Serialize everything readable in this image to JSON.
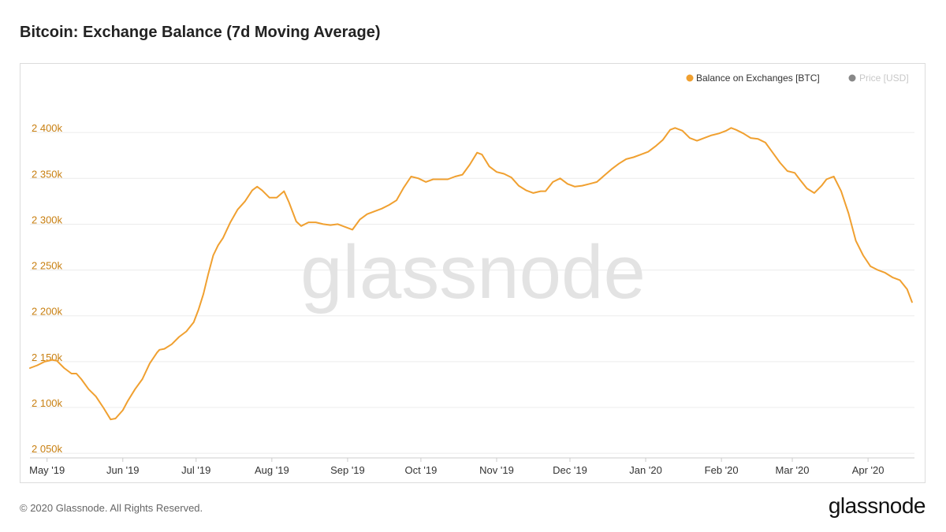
{
  "title": "Bitcoin: Exchange Balance (7d Moving Average)",
  "watermark": "glassnode",
  "footer": {
    "copyright": "© 2020 Glassnode. All Rights Reserved.",
    "brand": "glassnode"
  },
  "colors": {
    "series": "#f0a030",
    "axis_label": "#c87f10",
    "grid": "#ececec",
    "watermark": "#e3e3e3",
    "legend_inactive": "#888888"
  },
  "chart_data": {
    "type": "line",
    "title": "Bitcoin: Exchange Balance (7d Moving Average)",
    "xlabel": "",
    "ylabel": "",
    "grid": true,
    "legend_position": "top-right",
    "y_ticks": [
      2050000,
      2100000,
      2150000,
      2200000,
      2250000,
      2300000,
      2350000,
      2400000
    ],
    "y_tick_labels": [
      "2 050k",
      "2 100k",
      "2 150k",
      "2 200k",
      "2 250k",
      "2 300k",
      "2 350k",
      "2 400k"
    ],
    "ylim": [
      2045000,
      2450000
    ],
    "x_ticks": [
      "2019-05-01",
      "2019-06-01",
      "2019-07-01",
      "2019-08-01",
      "2019-09-01",
      "2019-10-01",
      "2019-11-01",
      "2019-12-01",
      "2020-01-01",
      "2020-02-01",
      "2020-03-01",
      "2020-04-01"
    ],
    "x_tick_labels": [
      "May '19",
      "Jun '19",
      "Jul '19",
      "Aug '19",
      "Sep '19",
      "Oct '19",
      "Nov '19",
      "Dec '19",
      "Jan '20",
      "Feb '20",
      "Mar '20",
      "Apr '20"
    ],
    "xlim": [
      "2019-04-24",
      "2020-04-20"
    ],
    "series": [
      {
        "name": "Balance on Exchanges [BTC]",
        "active": true,
        "points": [
          [
            "2019-04-24",
            2143000
          ],
          [
            "2019-04-27",
            2146000
          ],
          [
            "2019-04-30",
            2150000
          ],
          [
            "2019-05-03",
            2152000
          ],
          [
            "2019-05-05",
            2151000
          ],
          [
            "2019-05-08",
            2143000
          ],
          [
            "2019-05-11",
            2137000
          ],
          [
            "2019-05-13",
            2137000
          ],
          [
            "2019-05-15",
            2131000
          ],
          [
            "2019-05-18",
            2120000
          ],
          [
            "2019-05-21",
            2112000
          ],
          [
            "2019-05-24",
            2100000
          ],
          [
            "2019-05-27",
            2087000
          ],
          [
            "2019-05-29",
            2088000
          ],
          [
            "2019-06-01",
            2097000
          ],
          [
            "2019-06-03",
            2107000
          ],
          [
            "2019-06-06",
            2120000
          ],
          [
            "2019-06-09",
            2131000
          ],
          [
            "2019-06-12",
            2148000
          ],
          [
            "2019-06-15",
            2160000
          ],
          [
            "2019-06-16",
            2163000
          ],
          [
            "2019-06-18",
            2164000
          ],
          [
            "2019-06-21",
            2169000
          ],
          [
            "2019-06-24",
            2177000
          ],
          [
            "2019-06-27",
            2183000
          ],
          [
            "2019-06-30",
            2193000
          ],
          [
            "2019-07-02",
            2207000
          ],
          [
            "2019-07-04",
            2224000
          ],
          [
            "2019-07-06",
            2246000
          ],
          [
            "2019-07-08",
            2266000
          ],
          [
            "2019-07-10",
            2277000
          ],
          [
            "2019-07-12",
            2285000
          ],
          [
            "2019-07-15",
            2302000
          ],
          [
            "2019-07-18",
            2316000
          ],
          [
            "2019-07-21",
            2325000
          ],
          [
            "2019-07-24",
            2337000
          ],
          [
            "2019-07-26",
            2341000
          ],
          [
            "2019-07-28",
            2337000
          ],
          [
            "2019-07-31",
            2329000
          ],
          [
            "2019-08-03",
            2329000
          ],
          [
            "2019-08-06",
            2336000
          ],
          [
            "2019-08-08",
            2324000
          ],
          [
            "2019-08-11",
            2303000
          ],
          [
            "2019-08-13",
            2298000
          ],
          [
            "2019-08-16",
            2302000
          ],
          [
            "2019-08-19",
            2302000
          ],
          [
            "2019-08-22",
            2300000
          ],
          [
            "2019-08-25",
            2299000
          ],
          [
            "2019-08-28",
            2300000
          ],
          [
            "2019-08-31",
            2297000
          ],
          [
            "2019-09-03",
            2294000
          ],
          [
            "2019-09-06",
            2305000
          ],
          [
            "2019-09-09",
            2311000
          ],
          [
            "2019-09-12",
            2314000
          ],
          [
            "2019-09-15",
            2317000
          ],
          [
            "2019-09-18",
            2321000
          ],
          [
            "2019-09-21",
            2326000
          ],
          [
            "2019-09-24",
            2340000
          ],
          [
            "2019-09-27",
            2352000
          ],
          [
            "2019-09-30",
            2350000
          ],
          [
            "2019-10-03",
            2346000
          ],
          [
            "2019-10-06",
            2349000
          ],
          [
            "2019-10-09",
            2349000
          ],
          [
            "2019-10-12",
            2349000
          ],
          [
            "2019-10-15",
            2352000
          ],
          [
            "2019-10-18",
            2354000
          ],
          [
            "2019-10-21",
            2365000
          ],
          [
            "2019-10-24",
            2378000
          ],
          [
            "2019-10-26",
            2376000
          ],
          [
            "2019-10-29",
            2363000
          ],
          [
            "2019-11-01",
            2357000
          ],
          [
            "2019-11-04",
            2355000
          ],
          [
            "2019-11-07",
            2351000
          ],
          [
            "2019-11-10",
            2342000
          ],
          [
            "2019-11-13",
            2337000
          ],
          [
            "2019-11-16",
            2334000
          ],
          [
            "2019-11-19",
            2336000
          ],
          [
            "2019-11-21",
            2336000
          ],
          [
            "2019-11-24",
            2346000
          ],
          [
            "2019-11-27",
            2350000
          ],
          [
            "2019-11-30",
            2344000
          ],
          [
            "2019-12-03",
            2341000
          ],
          [
            "2019-12-06",
            2342000
          ],
          [
            "2019-12-09",
            2344000
          ],
          [
            "2019-12-12",
            2346000
          ],
          [
            "2019-12-15",
            2353000
          ],
          [
            "2019-12-18",
            2360000
          ],
          [
            "2019-12-21",
            2366000
          ],
          [
            "2019-12-24",
            2371000
          ],
          [
            "2019-12-27",
            2373000
          ],
          [
            "2019-12-30",
            2376000
          ],
          [
            "2020-01-02",
            2379000
          ],
          [
            "2020-01-05",
            2385000
          ],
          [
            "2020-01-08",
            2392000
          ],
          [
            "2020-01-11",
            2403000
          ],
          [
            "2020-01-13",
            2405000
          ],
          [
            "2020-01-16",
            2402000
          ],
          [
            "2020-01-19",
            2394000
          ],
          [
            "2020-01-22",
            2391000
          ],
          [
            "2020-01-25",
            2394000
          ],
          [
            "2020-01-28",
            2397000
          ],
          [
            "2020-01-31",
            2399000
          ],
          [
            "2020-02-03",
            2402000
          ],
          [
            "2020-02-05",
            2405000
          ],
          [
            "2020-02-07",
            2403000
          ],
          [
            "2020-02-10",
            2399000
          ],
          [
            "2020-02-13",
            2394000
          ],
          [
            "2020-02-16",
            2393000
          ],
          [
            "2020-02-19",
            2389000
          ],
          [
            "2020-02-22",
            2378000
          ],
          [
            "2020-02-25",
            2367000
          ],
          [
            "2020-02-28",
            2358000
          ],
          [
            "2020-03-02",
            2356000
          ],
          [
            "2020-03-04",
            2349000
          ],
          [
            "2020-03-07",
            2339000
          ],
          [
            "2020-03-10",
            2334000
          ],
          [
            "2020-03-13",
            2342000
          ],
          [
            "2020-03-15",
            2349000
          ],
          [
            "2020-03-17",
            2351000
          ],
          [
            "2020-03-18",
            2352000
          ],
          [
            "2020-03-21",
            2336000
          ],
          [
            "2020-03-24",
            2312000
          ],
          [
            "2020-03-27",
            2282000
          ],
          [
            "2020-03-30",
            2266000
          ],
          [
            "2020-04-02",
            2254000
          ],
          [
            "2020-04-05",
            2250000
          ],
          [
            "2020-04-08",
            2247000
          ],
          [
            "2020-04-11",
            2242000
          ],
          [
            "2020-04-14",
            2239000
          ],
          [
            "2020-04-17",
            2229000
          ],
          [
            "2020-04-19",
            2215000
          ]
        ]
      },
      {
        "name": "Price [USD]",
        "active": false,
        "points": []
      }
    ]
  }
}
